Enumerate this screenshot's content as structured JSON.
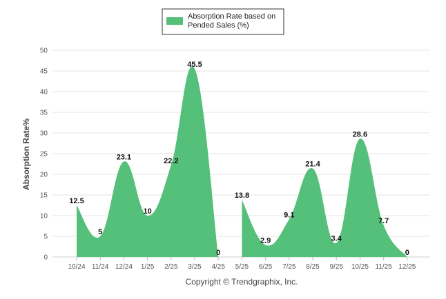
{
  "chart_data": {
    "type": "area",
    "categories": [
      "10/24",
      "11/24",
      "12/24",
      "1/25",
      "2/25",
      "3/25",
      "4/25",
      "5/25",
      "6/25",
      "7/25",
      "8/25",
      "9/25",
      "10/25",
      "11/25",
      "12/25"
    ],
    "series": [
      {
        "name": "Absorption Rate based on Pended Sales (%)",
        "name_lines": [
          "Absorption Rate based on",
          "Pended Sales (%)"
        ],
        "values": [
          12.5,
          5,
          23.1,
          10,
          22.2,
          45.5,
          0,
          13.8,
          2.9,
          9.1,
          21.4,
          3.4,
          28.6,
          7.7,
          0
        ],
        "color": "#55c07a"
      }
    ],
    "ylabel": "Absorption Rate%",
    "ylim": [
      0,
      50
    ],
    "yticks": [
      0,
      5,
      10,
      15,
      20,
      25,
      30,
      35,
      40,
      45,
      50
    ],
    "grid": true,
    "legend_position": "top-center"
  },
  "footer": {
    "copyright": "Copyright © Trendgraphix, Inc."
  }
}
